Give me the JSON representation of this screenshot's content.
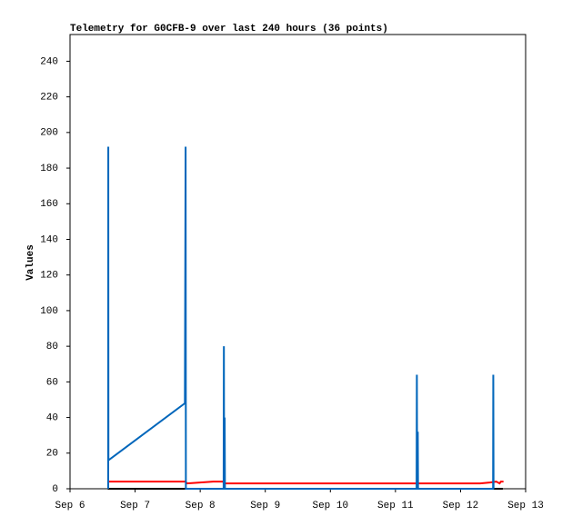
{
  "chart_data": {
    "type": "line",
    "title": "Telemetry for G0CFB-9 over last 240 hours (36 points)",
    "y_label": "Values",
    "xlim": [
      0,
      7
    ],
    "xticks": [
      {
        "value": 0,
        "label": "Sep 6"
      },
      {
        "value": 1,
        "label": "Sep 7"
      },
      {
        "value": 2,
        "label": "Sep 8"
      },
      {
        "value": 3,
        "label": "Sep 9"
      },
      {
        "value": 4,
        "label": "Sep 10"
      },
      {
        "value": 5,
        "label": "Sep 11"
      },
      {
        "value": 6,
        "label": "Sep 12"
      },
      {
        "value": 7,
        "label": "Sep 13"
      }
    ],
    "ylim": [
      0,
      255
    ],
    "yticks": [
      0,
      20,
      40,
      60,
      80,
      100,
      120,
      140,
      160,
      180,
      200,
      220,
      240
    ],
    "series": [
      {
        "color": "#000000",
        "x": [
          0.58,
          6.65
        ],
        "values": [
          0,
          0
        ]
      },
      {
        "color": "#ff0000",
        "x": [
          0.59,
          1.77,
          1.8,
          2.0,
          2.2,
          2.35,
          2.37,
          6.3,
          6.45,
          6.55,
          6.6,
          6.62,
          6.66
        ],
        "values": [
          4,
          4,
          3,
          3.5,
          4,
          4,
          3,
          3,
          3.5,
          4,
          3,
          4,
          4
        ]
      },
      {
        "color": "#0066bb",
        "x": [
          0.587,
          0.588,
          0.59,
          1.765,
          1.776,
          1.78,
          2.36,
          2.364,
          2.368,
          2.376,
          2.38,
          5.325,
          5.329,
          5.333,
          5.343,
          5.347,
          6.5,
          6.503,
          6.507
        ],
        "values": [
          0,
          192,
          16,
          48,
          192,
          0,
          0,
          80,
          0,
          40,
          0,
          0,
          64,
          0,
          32,
          0,
          0,
          64,
          0
        ]
      }
    ]
  }
}
